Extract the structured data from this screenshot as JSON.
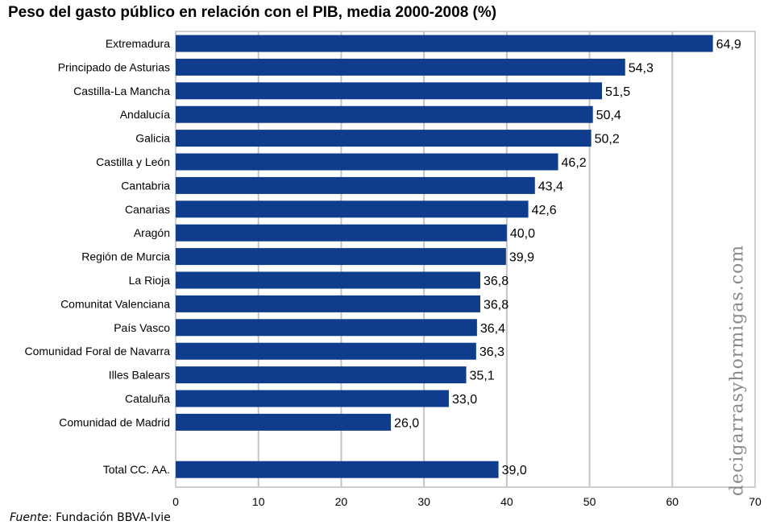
{
  "chart_data": {
    "type": "bar",
    "orientation": "horizontal",
    "title": "Peso del gasto público en relación con el PIB, media 2000-2008 (%)",
    "categories": [
      "Extremadura",
      "Principado de Asturias",
      "Castilla-La Mancha",
      "Andalucía",
      "Galicia",
      "Castilla y León",
      "Cantabria",
      "Canarias",
      "Aragón",
      "Región de Murcia",
      "La Rioja",
      "Comunitat Valenciana",
      "País Vasco",
      "Comunidad Foral de Navarra",
      "Illes Balears",
      "Cataluña",
      "Comunidad de Madrid",
      "Total CC. AA."
    ],
    "values": [
      64.9,
      54.3,
      51.5,
      50.4,
      50.2,
      46.2,
      43.4,
      42.6,
      40.0,
      39.9,
      36.8,
      36.8,
      36.4,
      36.3,
      35.1,
      33.0,
      26.0,
      39.0
    ],
    "value_labels": [
      "64,9",
      "54,3",
      "51,5",
      "50,4",
      "50,2",
      "46,2",
      "43,4",
      "42,6",
      "40,0",
      "39,9",
      "36,8",
      "36,8",
      "36,4",
      "36,3",
      "35,1",
      "33,0",
      "26,0",
      "39,0"
    ],
    "xlim": [
      0,
      70
    ],
    "xticks": [
      "0",
      "10",
      "20",
      "30",
      "40",
      "50",
      "60",
      "70"
    ],
    "grid": true,
    "bar_color": "#0f3c8c"
  },
  "source": {
    "label": "Fuente",
    "text": ": Fundación BBVA-Ivie"
  },
  "watermark": "decigarrasyhormigas.com"
}
